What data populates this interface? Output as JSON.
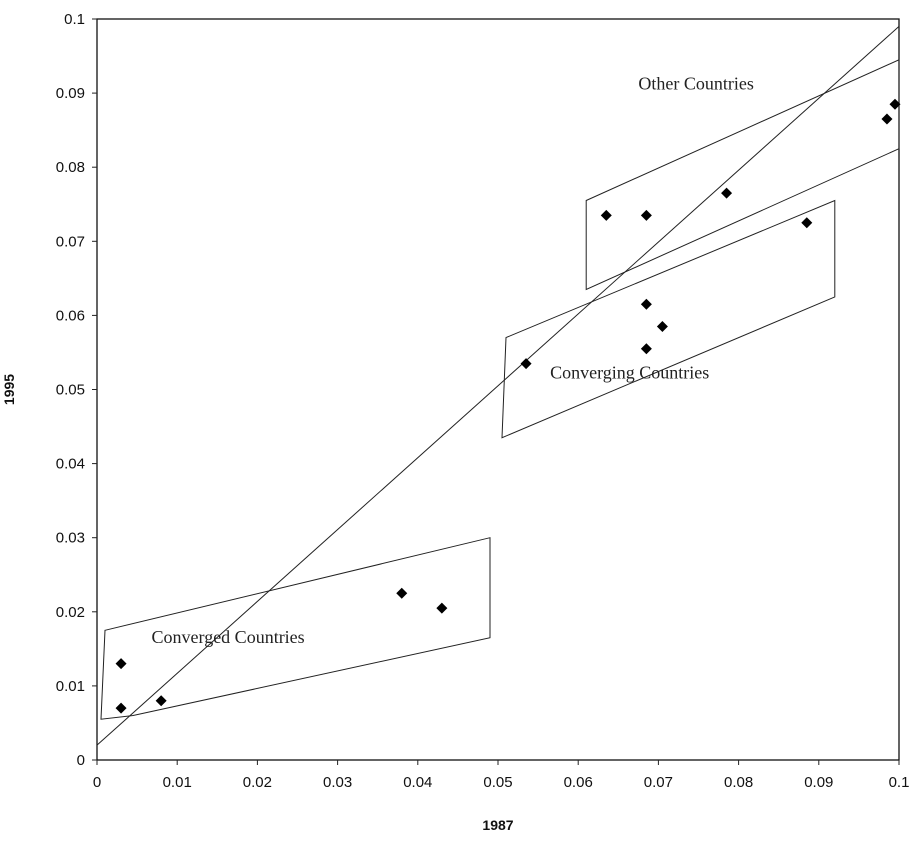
{
  "chart_data": {
    "type": "scatter",
    "title": "",
    "xlabel": "1987",
    "ylabel": "1995",
    "xlim": [
      0,
      0.1
    ],
    "ylim": [
      0,
      0.1
    ],
    "grid": false,
    "x_ticks": [
      "0",
      "0.01",
      "0.02",
      "0.03",
      "0.04",
      "0.05",
      "0.06",
      "0.07",
      "0.08",
      "0.09",
      "0.1"
    ],
    "y_ticks": [
      "0",
      "0.01",
      "0.02",
      "0.03",
      "0.04",
      "0.05",
      "0.06",
      "0.07",
      "0.08",
      "0.09",
      "0.1"
    ],
    "points": [
      {
        "x": 0.003,
        "y": 0.013
      },
      {
        "x": 0.003,
        "y": 0.007
      },
      {
        "x": 0.008,
        "y": 0.008
      },
      {
        "x": 0.038,
        "y": 0.0225
      },
      {
        "x": 0.043,
        "y": 0.0205
      },
      {
        "x": 0.0535,
        "y": 0.0535
      },
      {
        "x": 0.0635,
        "y": 0.0735
      },
      {
        "x": 0.0685,
        "y": 0.0735
      },
      {
        "x": 0.0685,
        "y": 0.0615
      },
      {
        "x": 0.0685,
        "y": 0.0555
      },
      {
        "x": 0.0705,
        "y": 0.0585
      },
      {
        "x": 0.0785,
        "y": 0.0765
      },
      {
        "x": 0.0885,
        "y": 0.0725
      },
      {
        "x": 0.0985,
        "y": 0.0865
      },
      {
        "x": 0.0995,
        "y": 0.0885
      }
    ],
    "reference_line": {
      "x": [
        0,
        0.1
      ],
      "y": [
        0.002,
        0.099
      ]
    },
    "groups": [
      {
        "label": "Converged Countries",
        "outline": [
          [
            0.001,
            0.0175
          ],
          [
            0.049,
            0.03
          ],
          [
            0.049,
            0.0165
          ],
          [
            0.0045,
            0.006
          ],
          [
            0.0005,
            0.0055
          ]
        ]
      },
      {
        "label": "Converging Countries",
        "outline": [
          [
            0.051,
            0.057
          ],
          [
            0.092,
            0.0755
          ],
          [
            0.092,
            0.0625
          ],
          [
            0.0505,
            0.0435
          ]
        ]
      },
      {
        "label": "Other Countries",
        "outline": [
          [
            0.061,
            0.0755
          ],
          [
            0.1,
            0.0945
          ],
          [
            0.1,
            0.0825
          ],
          [
            0.061,
            0.0635
          ]
        ]
      }
    ]
  }
}
